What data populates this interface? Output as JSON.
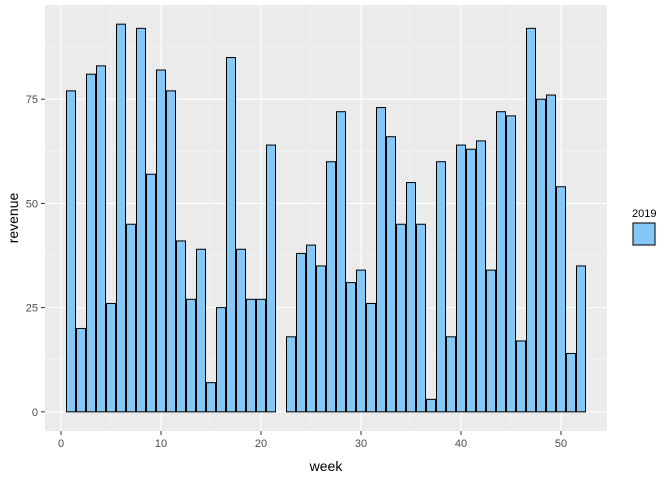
{
  "chart_data": {
    "type": "bar",
    "xlabel": "week",
    "ylabel": "revenue",
    "xlim": [
      -1.6,
      54.6
    ],
    "ylim": [
      -4.6,
      97.6
    ],
    "x_ticks": [
      0,
      10,
      20,
      30,
      40,
      50
    ],
    "y_ticks": [
      0,
      25,
      50,
      75
    ],
    "grid": true,
    "legend": {
      "title": "2019",
      "position": "right",
      "entries": [
        ""
      ]
    },
    "series": [
      {
        "color": "#85C8F8",
        "x": [
          1,
          2,
          3,
          4,
          5,
          6,
          7,
          8,
          9,
          10,
          11,
          12,
          13,
          14,
          15,
          16,
          17,
          18,
          19,
          20,
          21,
          22,
          23,
          24,
          25,
          26,
          27,
          28,
          29,
          30,
          31,
          32,
          33,
          34,
          35,
          36,
          37,
          38,
          39,
          40,
          41,
          42,
          43,
          44,
          45,
          46,
          47,
          48,
          49,
          50,
          51,
          52
        ],
        "values": [
          77,
          20,
          81,
          83,
          26,
          93,
          45,
          92,
          57,
          82,
          77,
          41,
          27,
          39,
          7,
          25,
          85,
          39,
          27,
          27,
          64,
          0,
          18,
          38,
          40,
          35,
          60,
          72,
          31,
          34,
          26,
          73,
          66,
          45,
          55,
          45,
          3,
          60,
          18,
          64,
          63,
          65,
          34,
          72,
          71,
          17,
          92,
          75,
          76,
          54,
          14,
          35
        ]
      }
    ]
  }
}
